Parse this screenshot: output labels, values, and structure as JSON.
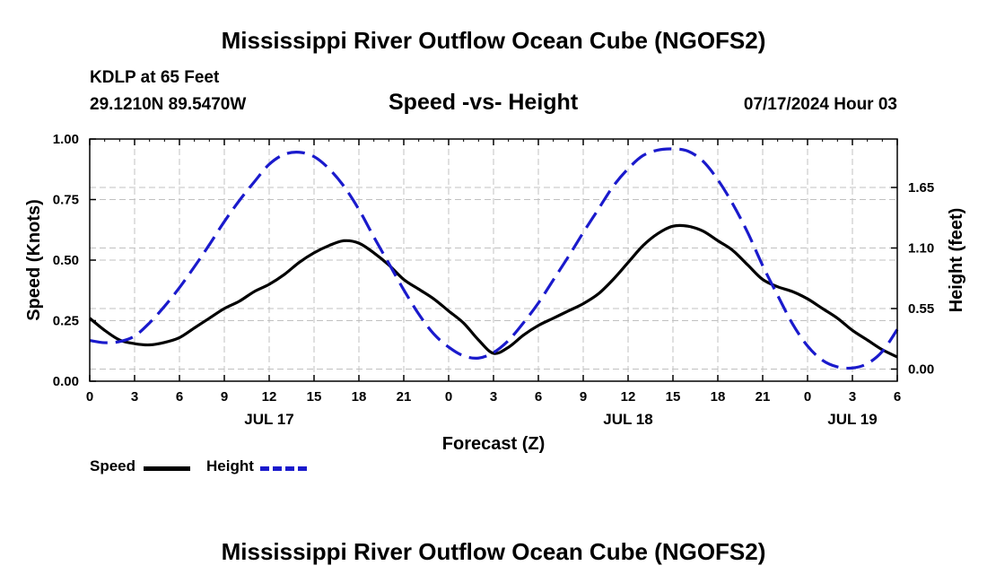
{
  "page": {
    "title": "Mississippi River Outflow Ocean Cube (NGOFS2)",
    "footer_title": "Mississippi River Outflow Ocean Cube (NGOFS2)",
    "station": "KDLP at 65 Feet",
    "location": "29.1210N  89.5470W",
    "subtitle": "Speed -vs- Height",
    "timestamp": "07/17/2024 Hour 03"
  },
  "legend": {
    "speed_label": "Speed",
    "height_label": "Height"
  },
  "colors": {
    "speed": "#000000",
    "height": "#1a1acc",
    "grid": "#c0c0c0"
  },
  "chart_data": {
    "type": "line",
    "xlabel": "Forecast (Z)",
    "ylabel": "Speed (Knots)",
    "y2label": "Height (feet)",
    "xlim": [
      0,
      54
    ],
    "ylim": [
      0,
      1.0
    ],
    "y2lim": [
      -0.11,
      2.09
    ],
    "x_ticks": [
      0,
      3,
      6,
      9,
      12,
      15,
      18,
      21,
      24,
      27,
      30,
      33,
      36,
      39,
      42,
      45,
      48,
      51,
      54
    ],
    "x_tick_labels": [
      "0",
      "3",
      "6",
      "9",
      "12",
      "15",
      "18",
      "21",
      "0",
      "3",
      "6",
      "9",
      "12",
      "15",
      "18",
      "21",
      "0",
      "3",
      "6"
    ],
    "day_labels": [
      {
        "x": 12,
        "label": "JUL 17"
      },
      {
        "x": 36,
        "label": "JUL 18"
      },
      {
        "x": 51,
        "label": "JUL 19"
      }
    ],
    "y_ticks": [
      0,
      0.25,
      0.5,
      0.75,
      1.0
    ],
    "y_tick_labels": [
      "0.00",
      "0.25",
      "0.50",
      "0.75",
      "1.00"
    ],
    "y2_ticks": [
      0,
      0.55,
      1.1,
      1.65
    ],
    "y2_tick_labels": [
      "0.00",
      "0.55",
      "1.10",
      "1.65"
    ],
    "series": [
      {
        "name": "Speed",
        "axis": "left",
        "style": "solid",
        "x": [
          0,
          1,
          2,
          3,
          4,
          5,
          6,
          7,
          8,
          9,
          10,
          11,
          12,
          13,
          14,
          15,
          16,
          17,
          18,
          19,
          20,
          21,
          22,
          23,
          24,
          25,
          26,
          27,
          28,
          29,
          30,
          31,
          32,
          33,
          34,
          35,
          36,
          37,
          38,
          39,
          40,
          41,
          42,
          43,
          44,
          45,
          46,
          47,
          48,
          49,
          50,
          51,
          52,
          53,
          54
        ],
        "values": [
          0.26,
          0.21,
          0.17,
          0.155,
          0.15,
          0.16,
          0.18,
          0.22,
          0.26,
          0.3,
          0.33,
          0.37,
          0.4,
          0.44,
          0.49,
          0.53,
          0.56,
          0.58,
          0.57,
          0.53,
          0.48,
          0.42,
          0.38,
          0.34,
          0.29,
          0.24,
          0.17,
          0.115,
          0.14,
          0.19,
          0.23,
          0.26,
          0.29,
          0.32,
          0.36,
          0.42,
          0.49,
          0.56,
          0.61,
          0.64,
          0.64,
          0.62,
          0.58,
          0.54,
          0.48,
          0.42,
          0.39,
          0.37,
          0.34,
          0.3,
          0.26,
          0.21,
          0.17,
          0.13,
          0.1
        ]
      },
      {
        "name": "Height",
        "axis": "right",
        "style": "dashed",
        "x": [
          0,
          1,
          2,
          3,
          4,
          5,
          6,
          7,
          8,
          9,
          10,
          11,
          12,
          13,
          14,
          15,
          16,
          17,
          18,
          19,
          20,
          21,
          22,
          23,
          24,
          25,
          26,
          27,
          28,
          29,
          30,
          31,
          32,
          33,
          34,
          35,
          36,
          37,
          38,
          39,
          40,
          41,
          42,
          43,
          44,
          45,
          46,
          47,
          48,
          49,
          50,
          51,
          52,
          53,
          54
        ],
        "values": [
          0.26,
          0.24,
          0.25,
          0.3,
          0.42,
          0.57,
          0.74,
          0.93,
          1.13,
          1.34,
          1.53,
          1.7,
          1.86,
          1.95,
          1.97,
          1.93,
          1.82,
          1.66,
          1.45,
          1.2,
          0.96,
          0.72,
          0.5,
          0.32,
          0.2,
          0.12,
          0.1,
          0.15,
          0.26,
          0.42,
          0.6,
          0.81,
          1.02,
          1.24,
          1.45,
          1.66,
          1.82,
          1.94,
          1.99,
          2.0,
          1.98,
          1.89,
          1.72,
          1.5,
          1.24,
          0.94,
          0.67,
          0.41,
          0.21,
          0.08,
          0.02,
          0.01,
          0.05,
          0.16,
          0.36
        ]
      }
    ]
  }
}
